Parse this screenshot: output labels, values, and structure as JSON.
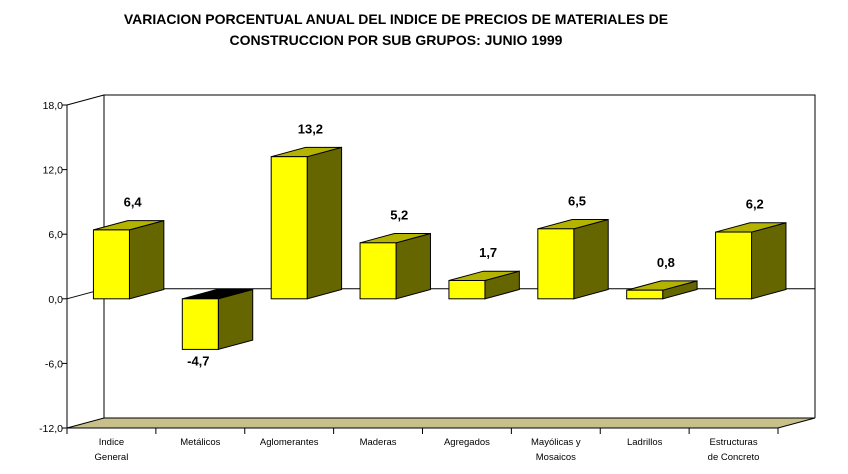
{
  "chart_data": {
    "type": "bar",
    "title_lines": [
      "VARIACION PORCENTUAL ANUAL DEL INDICE DE PRECIOS DE MATERIALES DE",
      "CONSTRUCCION POR SUB GRUPOS: JUNIO 1999"
    ],
    "categories": [
      [
        "Indice",
        "General"
      ],
      [
        "Metálicos"
      ],
      [
        "Aglomerantes"
      ],
      [
        "Maderas"
      ],
      [
        "Agregados"
      ],
      [
        "Mayólicas y",
        "Mosaicos"
      ],
      [
        "Ladrillos"
      ],
      [
        "Estructuras",
        "de Concreto"
      ]
    ],
    "values": [
      6.4,
      -4.7,
      13.2,
      5.2,
      1.7,
      6.5,
      0.8,
      6.2
    ],
    "value_labels": [
      "6,4",
      "-4,7",
      "13,2",
      "5,2",
      "1,7",
      "6,5",
      "0,8",
      "6,2"
    ],
    "ylim": [
      -12,
      18
    ],
    "yticks": [
      18,
      12,
      6,
      0,
      -6,
      -12
    ],
    "ytick_labels": [
      "18,0",
      "12,0",
      "6,0",
      "0,0",
      "-6,0",
      "-12,0"
    ],
    "grid": false,
    "style": "3d-column",
    "colors": {
      "bar_front": "#ffff00",
      "bar_side": "#666600",
      "bar_top": "#b3b300",
      "bar_top_negative": "#000000",
      "floor": "#c8c08a"
    }
  }
}
